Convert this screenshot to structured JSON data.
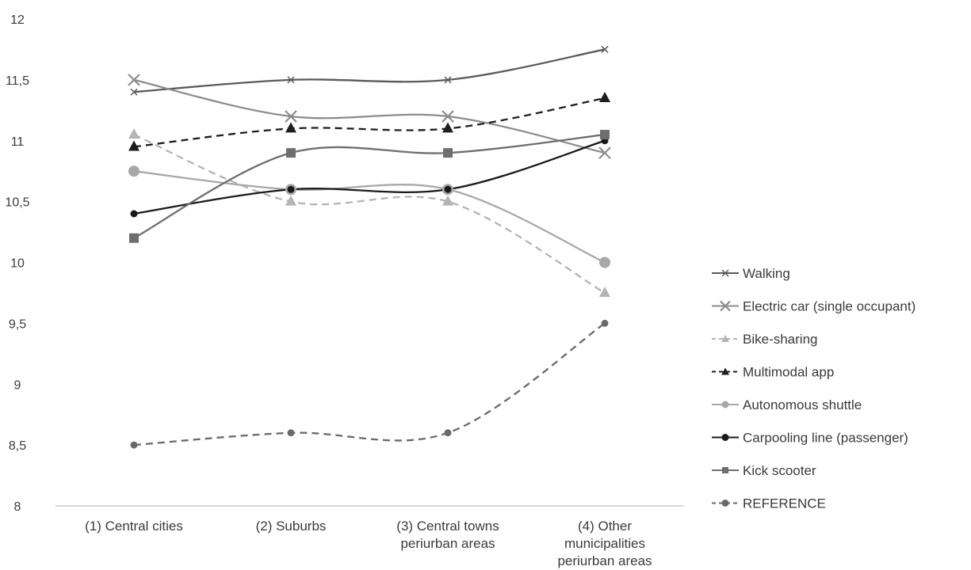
{
  "chart_data": {
    "type": "line",
    "categories": [
      [
        "(1) Central cities"
      ],
      [
        "(2) Suburbs"
      ],
      [
        "(3) Central towns",
        "periurban areas"
      ],
      [
        "(4) Other",
        "municipalities",
        "periurban areas"
      ]
    ],
    "y_ticks": [
      "8",
      "8,5",
      "9",
      "9,5",
      "10",
      "10,5",
      "11",
      "11,5",
      "12"
    ],
    "ylim": [
      8,
      12
    ],
    "grid": false,
    "legend_position": "right",
    "series": [
      {
        "name": "Walking",
        "values": [
          11.4,
          11.5,
          11.5,
          11.75
        ],
        "color": "#5a5a5a",
        "dash": "solid",
        "marker": "cross-small",
        "smooth": true
      },
      {
        "name": "Electric car (single occupant)",
        "values": [
          11.5,
          11.2,
          11.2,
          10.9
        ],
        "color": "#8c8c8c",
        "dash": "solid",
        "marker": "x",
        "smooth": true
      },
      {
        "name": "Bike-sharing",
        "values": [
          11.05,
          10.5,
          10.5,
          9.75
        ],
        "color": "#b4b4b4",
        "dash": "dashed",
        "marker": "triangle",
        "smooth": true
      },
      {
        "name": "Multimodal app",
        "values": [
          10.95,
          11.1,
          11.1,
          11.35
        ],
        "color": "#1e1e1e",
        "dash": "dashed",
        "marker": "triangle",
        "smooth": true
      },
      {
        "name": "Autonomous shuttle",
        "values": [
          10.75,
          10.6,
          10.6,
          10.0
        ],
        "color": "#a8a8a8",
        "dash": "solid",
        "marker": "circle",
        "smooth": true
      },
      {
        "name": "Carpooling line (passenger)",
        "values": [
          10.4,
          10.6,
          10.6,
          11.0
        ],
        "color": "#1a1a1a",
        "dash": "solid",
        "marker": "circle-small",
        "smooth": true
      },
      {
        "name": "Kick scooter",
        "values": [
          10.2,
          10.9,
          10.9,
          11.05
        ],
        "color": "#6e6e6e",
        "dash": "solid",
        "marker": "square",
        "smooth": true
      },
      {
        "name": "REFERENCE",
        "values": [
          8.5,
          8.6,
          8.6,
          9.5
        ],
        "color": "#6a6a6a",
        "dash": "dashed",
        "marker": "circle-small",
        "smooth": true
      }
    ]
  }
}
